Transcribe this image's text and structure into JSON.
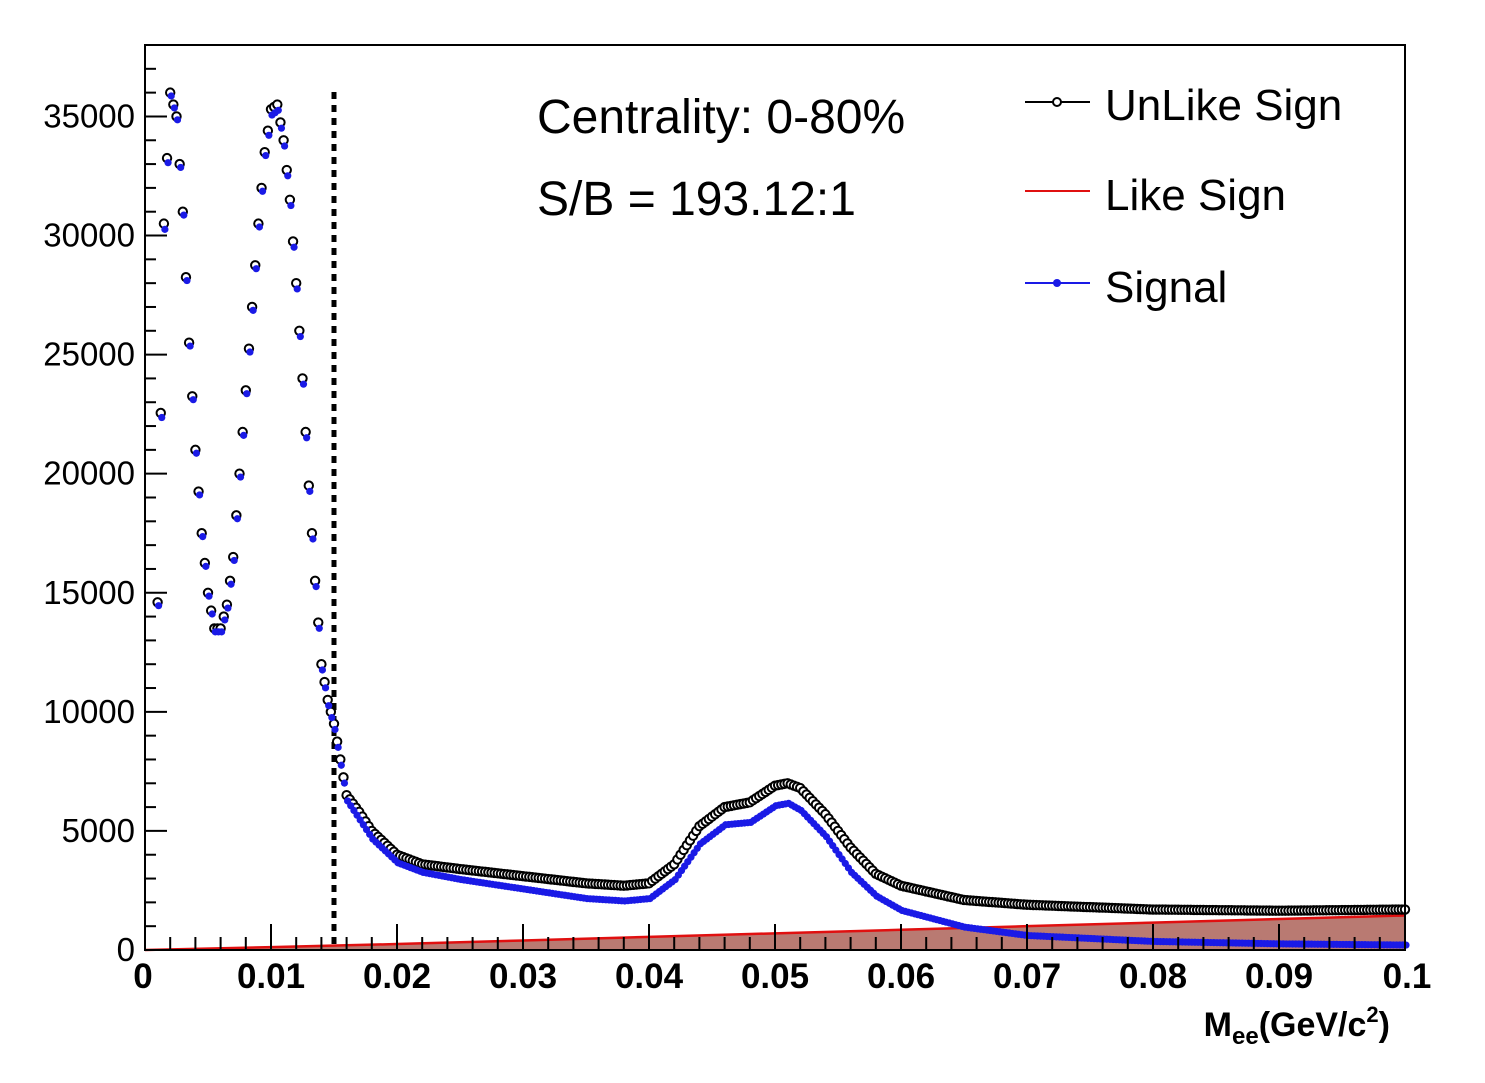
{
  "chart_data": {
    "type": "scatter",
    "xlabel_main": "M",
    "xlabel_sub": "ee",
    "xlabel_unit": "(GeV/c",
    "xlabel_sup": "2",
    "xlabel_close": ")",
    "ylabel": "",
    "xlim": [
      0,
      0.1
    ],
    "ylim": [
      0,
      38000
    ],
    "x_ticks": [
      0,
      0.01,
      0.02,
      0.03,
      0.04,
      0.05,
      0.06,
      0.07,
      0.08,
      0.09,
      0.1
    ],
    "x_tick_labels": [
      "0",
      "0.01",
      "0.02",
      "0.03",
      "0.04",
      "0.05",
      "0.06",
      "0.07",
      "0.08",
      "0.09",
      "0.1"
    ],
    "y_ticks": [
      0,
      5000,
      10000,
      15000,
      20000,
      25000,
      30000,
      35000
    ],
    "y_tick_labels": [
      "0",
      "5000",
      "10000",
      "15000",
      "20000",
      "25000",
      "30000",
      "35000"
    ],
    "annotations": [
      "Centrality: 0-80%",
      "S/B = 193.12:1"
    ],
    "cut_line_x": 0.015,
    "legend_position": "top-right",
    "legend": [
      {
        "label": "UnLike Sign",
        "style": "open-circle-line",
        "color": "#000000"
      },
      {
        "label": "Like Sign",
        "style": "line-filled",
        "color": "#e01010"
      },
      {
        "label": "Signal",
        "style": "filled-dot-line",
        "color": "#1010e0"
      }
    ],
    "colors": {
      "unlike": "#000000",
      "like_line": "#e01010",
      "like_fill": "#b97a72",
      "signal": "#1a1ae6",
      "cut_line": "#000000"
    },
    "series": [
      {
        "name": "UnLike Sign",
        "x": [
          0.001,
          0.0015,
          0.002,
          0.0025,
          0.003,
          0.0035,
          0.004,
          0.0045,
          0.005,
          0.0055,
          0.006,
          0.0065,
          0.007,
          0.0075,
          0.008,
          0.0085,
          0.009,
          0.0095,
          0.01,
          0.0105,
          0.011,
          0.0115,
          0.012,
          0.0125,
          0.013,
          0.0135,
          0.014,
          0.0145,
          0.015,
          0.0155,
          0.016,
          0.017,
          0.018,
          0.019,
          0.02,
          0.022,
          0.025,
          0.03,
          0.035,
          0.038,
          0.04,
          0.042,
          0.044,
          0.046,
          0.048,
          0.05,
          0.051,
          0.052,
          0.054,
          0.056,
          0.058,
          0.06,
          0.065,
          0.07,
          0.08,
          0.09,
          0.1
        ],
        "y": [
          14600,
          30500,
          36000,
          35000,
          31000,
          25500,
          21000,
          17500,
          15000,
          13500,
          13500,
          14500,
          16500,
          20000,
          23500,
          27000,
          30500,
          33500,
          35300,
          35500,
          34000,
          31500,
          28000,
          24000,
          19500,
          15500,
          12000,
          10500,
          9500,
          8000,
          6500,
          5800,
          5000,
          4500,
          4000,
          3600,
          3400,
          3100,
          2800,
          2700,
          2800,
          3600,
          5200,
          6000,
          6200,
          6900,
          7000,
          6800,
          5700,
          4300,
          3200,
          2700,
          2100,
          1900,
          1700,
          1650,
          1700
        ]
      },
      {
        "name": "Like Sign",
        "x": [
          0,
          0.01,
          0.02,
          0.03,
          0.04,
          0.05,
          0.06,
          0.07,
          0.08,
          0.09,
          0.1
        ],
        "y": [
          0,
          120,
          250,
          400,
          550,
          700,
          850,
          1000,
          1150,
          1300,
          1450
        ]
      },
      {
        "name": "Signal",
        "x": [
          0.001,
          0.0015,
          0.002,
          0.0025,
          0.003,
          0.0035,
          0.004,
          0.0045,
          0.005,
          0.0055,
          0.006,
          0.0065,
          0.007,
          0.0075,
          0.008,
          0.0085,
          0.009,
          0.0095,
          0.01,
          0.0105,
          0.011,
          0.0115,
          0.012,
          0.0125,
          0.013,
          0.0135,
          0.014,
          0.0145,
          0.015,
          0.0155,
          0.016,
          0.017,
          0.018,
          0.019,
          0.02,
          0.022,
          0.025,
          0.03,
          0.035,
          0.038,
          0.04,
          0.042,
          0.044,
          0.046,
          0.048,
          0.05,
          0.051,
          0.052,
          0.054,
          0.056,
          0.058,
          0.06,
          0.065,
          0.07,
          0.08,
          0.09,
          0.1
        ],
        "y": [
          14500,
          30300,
          35900,
          34900,
          30900,
          25400,
          20900,
          17400,
          14900,
          13400,
          13400,
          14400,
          16400,
          19900,
          23400,
          26900,
          30400,
          33400,
          35100,
          35300,
          33800,
          31300,
          27800,
          23800,
          19300,
          15300,
          11800,
          10300,
          9300,
          7800,
          6300,
          5500,
          4700,
          4200,
          3700,
          3300,
          3000,
          2600,
          2200,
          2100,
          2200,
          3000,
          4500,
          5300,
          5400,
          6100,
          6200,
          5900,
          4800,
          3300,
          2300,
          1700,
          1000,
          650,
          400,
          300,
          250
        ]
      }
    ]
  }
}
